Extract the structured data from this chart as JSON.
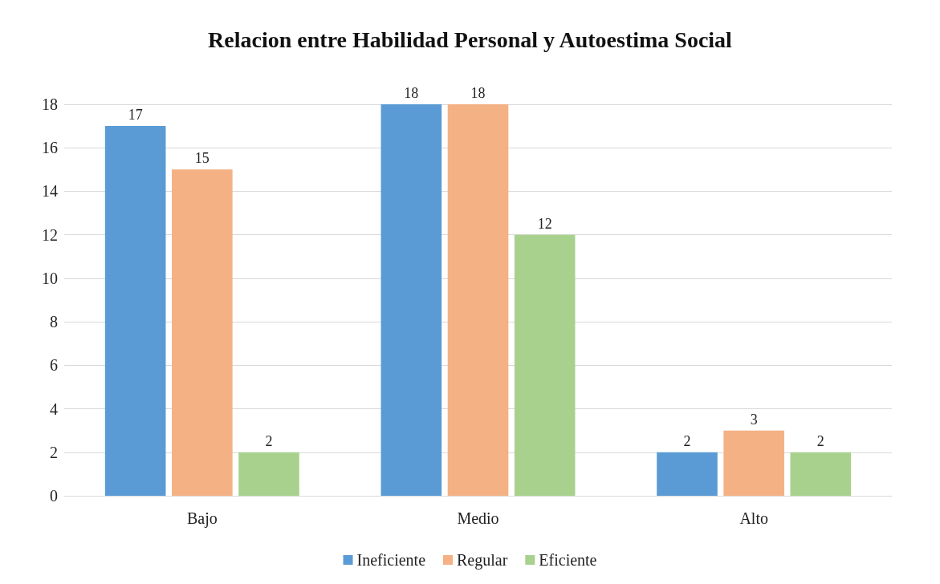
{
  "chart_data": {
    "type": "bar",
    "title": "Relacion entre Habilidad Personal y Autoestima Social",
    "categories": [
      "Bajo",
      "Medio",
      "Alto"
    ],
    "series": [
      {
        "name": "Ineficiente",
        "color": "#5b9bd5",
        "values": [
          17,
          18,
          2
        ]
      },
      {
        "name": "Regular",
        "color": "#f4b183",
        "values": [
          15,
          18,
          3
        ]
      },
      {
        "name": "Eficiente",
        "color": "#a9d18e",
        "values": [
          2,
          12,
          2
        ]
      }
    ],
    "ylim": [
      0,
      18
    ],
    "yticks": [
      0,
      2,
      4,
      6,
      8,
      10,
      12,
      14,
      16,
      18
    ],
    "grid": "y",
    "legend": "bottom",
    "data_labels": true
  }
}
